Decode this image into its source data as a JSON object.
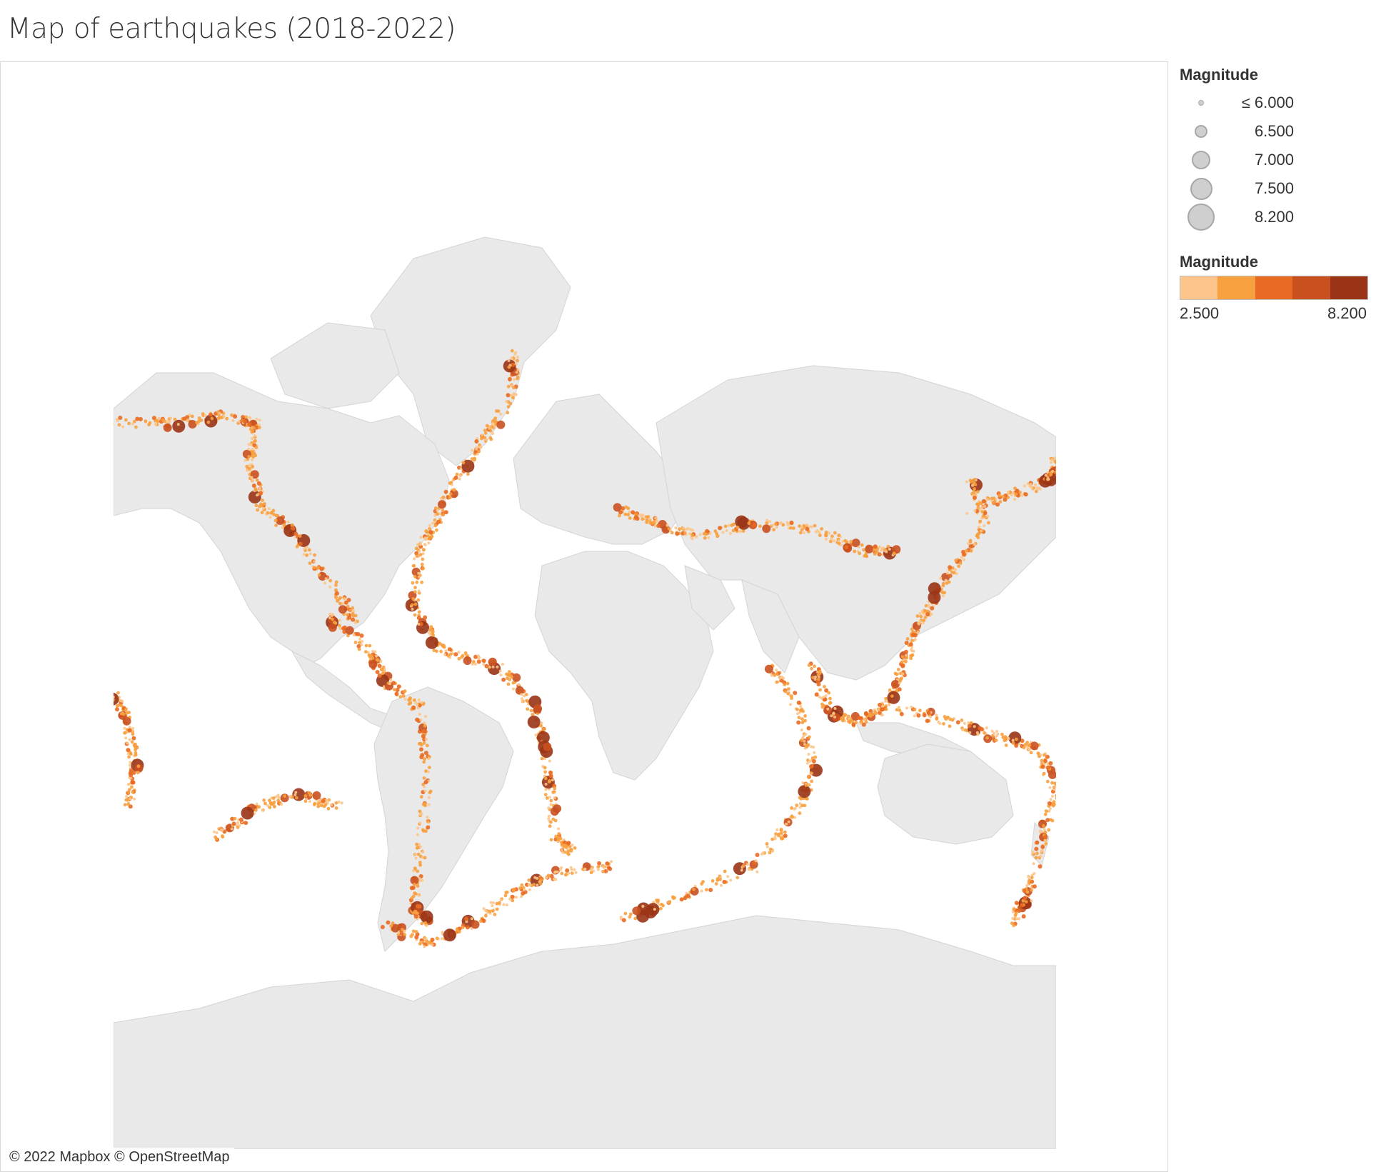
{
  "title": "Map of earthquakes (2018-2022)",
  "attribution": "© 2022 Mapbox © OpenStreetMap",
  "colors": {
    "land": "#e9e9e9",
    "ocean": "#ffffff",
    "ramp": [
      "#fdc58b",
      "#f7a03f",
      "#e96a22",
      "#c9501f",
      "#9a3416"
    ]
  },
  "size_legend": {
    "title": "Magnitude",
    "items": [
      {
        "label": "≤ 6.000",
        "magnitude": 6.0
      },
      {
        "label": "6.500",
        "magnitude": 6.5
      },
      {
        "label": "7.000",
        "magnitude": 7.0
      },
      {
        "label": "7.500",
        "magnitude": 7.5
      },
      {
        "label": "8.200",
        "magnitude": 8.2
      }
    ]
  },
  "color_legend": {
    "title": "Magnitude",
    "min_label": "2.500",
    "max_label": "8.200",
    "min": 2.5,
    "max": 8.2
  }
}
